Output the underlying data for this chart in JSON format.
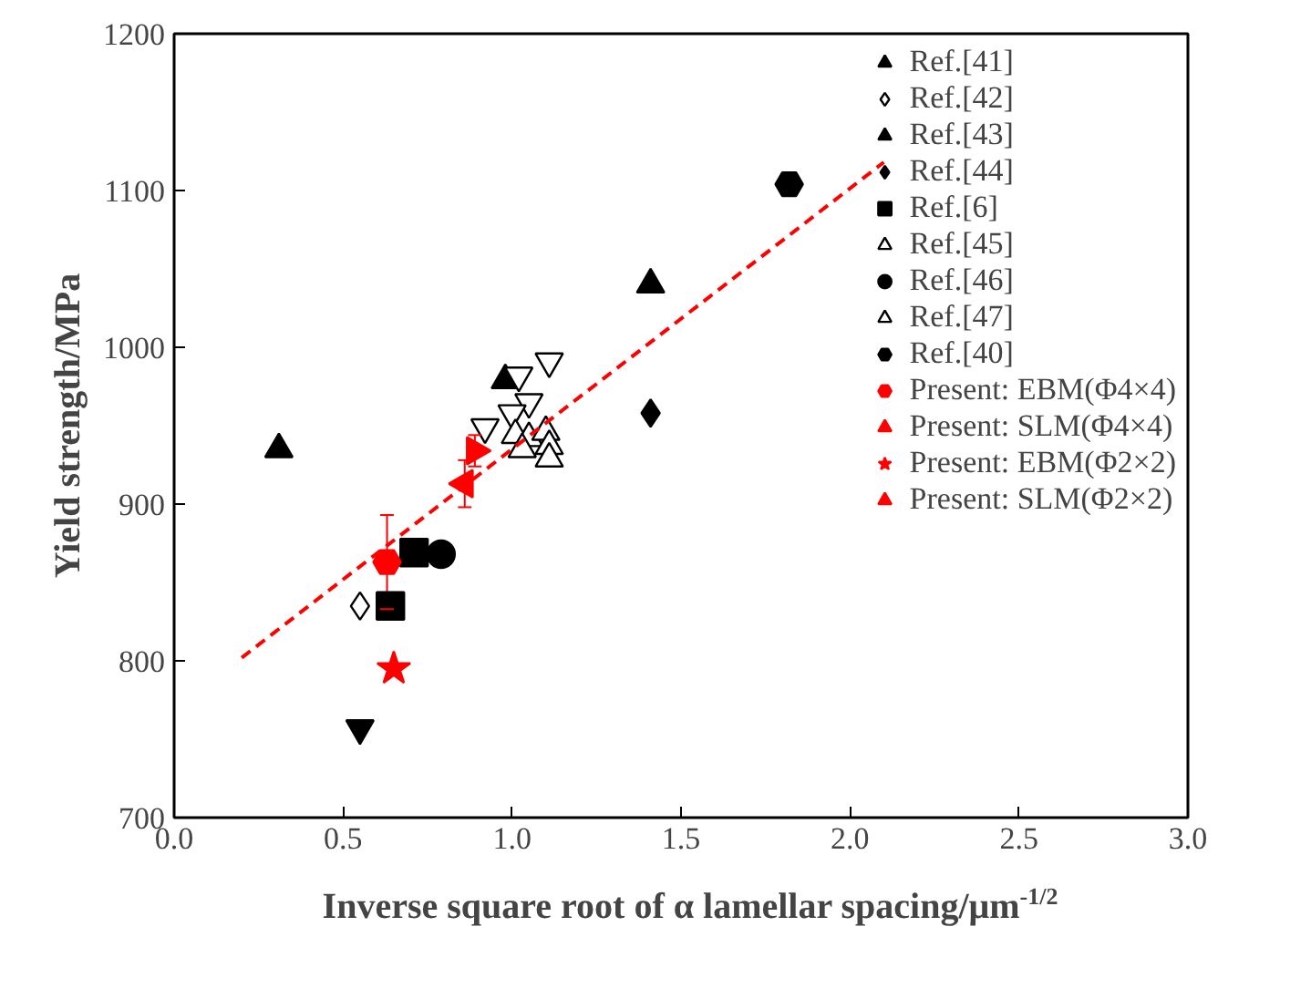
{
  "chart_data": {
    "type": "scatter",
    "xlabel": "Inverse square root of α lamellar spacing/μm$^{-1/2}$",
    "ylabel": "Yield strength/MPa",
    "xlim": [
      0,
      3
    ],
    "ylim": [
      700,
      1200
    ],
    "xticks": [
      {
        "value": 0,
        "label": "0.0"
      },
      {
        "value": 0.5,
        "label": "0.5"
      },
      {
        "value": 1,
        "label": "1.0"
      },
      {
        "value": 1.5,
        "label": "1.5"
      },
      {
        "value": 2,
        "label": "2.0"
      },
      {
        "value": 2.5,
        "label": "2.5"
      },
      {
        "value": 3,
        "label": "3.0"
      }
    ],
    "yticks": [
      700,
      800,
      900,
      1000,
      1100,
      1200
    ],
    "grid": false,
    "legend": "top right",
    "series": [
      {
        "name": "Ref.[41]",
        "color": "#000000",
        "marker": "triangle",
        "x": [
          0.31,
          0.98,
          1.41
        ],
        "values": [
          935,
          979,
          1040
        ]
      },
      {
        "name": "Ref.[42]",
        "color": "#000000",
        "marker": "diamond",
        "x": [
          0.55
        ],
        "values": [
          835
        ]
      },
      {
        "name": "Ref.[43]",
        "color": "#000000",
        "marker": "triangle",
        "x": [
          0.55
        ],
        "values": [
          757
        ]
      },
      {
        "name": "Ref.[44]",
        "color": "#000000",
        "marker": "diamond",
        "x": [
          1.41
        ],
        "values": [
          958
        ]
      },
      {
        "name": "Ref.[6]",
        "color": "#000000",
        "marker": "square",
        "x": [
          0.71,
          0.64
        ],
        "values": [
          869,
          835
        ]
      },
      {
        "name": "Ref.[45]",
        "color": "#000000",
        "marker": "triangle",
        "x": [
          1.11,
          1.02,
          1.05,
          1.0,
          0.92
        ],
        "values": [
          991,
          982,
          965,
          958,
          949
        ]
      },
      {
        "name": "Ref.[46]",
        "color": "#000000",
        "marker": "circle",
        "x": [
          0.79
        ],
        "values": [
          868
        ]
      },
      {
        "name": "Ref.[47]",
        "color": "#000000",
        "marker": "triangle",
        "x": [
          1.01,
          1.05,
          1.1,
          1.03,
          1.11,
          1.11
        ],
        "values": [
          944,
          942,
          946,
          935,
          937,
          929
        ]
      },
      {
        "name": "Ref.[40]",
        "color": "#000000",
        "x": [
          1.82
        ],
        "values": [
          1104
        ]
      },
      {
        "name": "Present: EBM(Φ4×4)",
        "color": "#ff0000",
        "x": [
          0.63
        ],
        "values": [
          863
        ],
        "errors": [
          30
        ]
      },
      {
        "name": "Present: SLM(Φ4×4)",
        "color": "#ff0000",
        "marker": "triangle",
        "x": [
          0.89
        ],
        "values": [
          934
        ],
        "errors": [
          10
        ]
      },
      {
        "name": "Present: EBM(Φ2×2)",
        "color": "#ff0000",
        "marker": "star",
        "x": [
          0.65
        ],
        "values": [
          795
        ]
      },
      {
        "name": "Present: SLM(Φ2×2)",
        "color": "#ff0000",
        "marker": "triangle",
        "x": [
          0.86
        ],
        "values": [
          913
        ],
        "errors": [
          15
        ]
      },
      {
        "type": "line",
        "color": "#ff0000",
        "line_style": "dashed",
        "marker": "none",
        "x": [
          0.2,
          2.1
        ],
        "values": [
          802,
          1118
        ]
      }
    ]
  }
}
